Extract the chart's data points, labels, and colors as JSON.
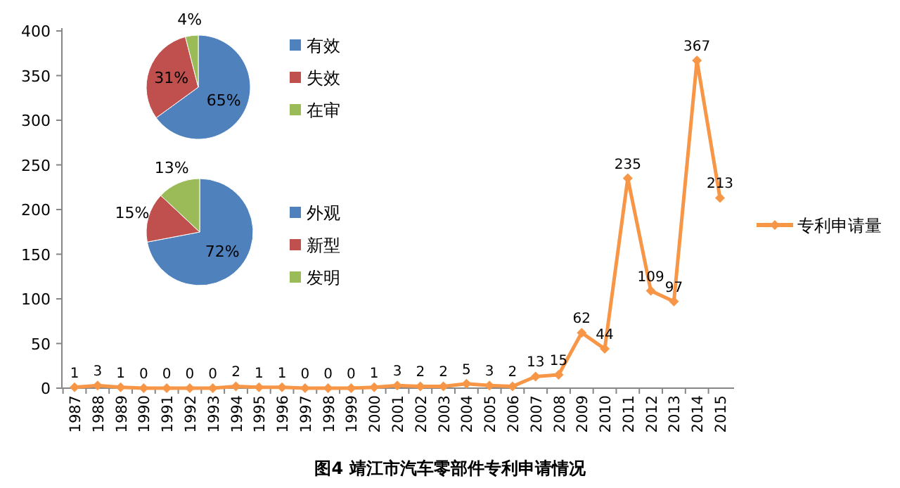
{
  "chart_data": [
    {
      "type": "line",
      "categories": [
        "1987",
        "1988",
        "1989",
        "1990",
        "1991",
        "1992",
        "1993",
        "1994",
        "1995",
        "1996",
        "1997",
        "1998",
        "1999",
        "2000",
        "2001",
        "2002",
        "2003",
        "2004",
        "2005",
        "2006",
        "2007",
        "2008",
        "2009",
        "2010",
        "2011",
        "2012",
        "2013",
        "2014",
        "2015"
      ],
      "series": [
        {
          "name": "专利申请量",
          "color": "#f79646",
          "values": [
            1,
            3,
            1,
            0,
            0,
            0,
            0,
            2,
            1,
            1,
            0,
            0,
            0,
            1,
            3,
            2,
            2,
            5,
            3,
            2,
            13,
            15,
            62,
            44,
            235,
            109,
            97,
            367,
            213
          ]
        }
      ],
      "ylim": [
        0,
        400
      ],
      "yticks": [
        0,
        50,
        100,
        150,
        200,
        250,
        300,
        350,
        400
      ],
      "marker": "diamond",
      "data_labels": true,
      "legend": "right",
      "grid": false,
      "annotations": [
        "图4  靖江市汽车零部件专利申请情况"
      ]
    },
    {
      "type": "pie",
      "categories": [
        "有效",
        "失效",
        "在审"
      ],
      "values": [
        65,
        31,
        4
      ],
      "colors": [
        "#4f81bd",
        "#c0504d",
        "#9bbb59"
      ],
      "value_labels": [
        "65%",
        "31%",
        "4%"
      ],
      "legend": "right"
    },
    {
      "type": "pie",
      "categories": [
        "外观",
        "新型",
        "发明"
      ],
      "values": [
        72,
        15,
        13
      ],
      "colors": [
        "#4f81bd",
        "#c0504d",
        "#9bbb59"
      ],
      "value_labels": [
        "72%",
        "15%",
        "13%"
      ],
      "legend": "right"
    }
  ]
}
